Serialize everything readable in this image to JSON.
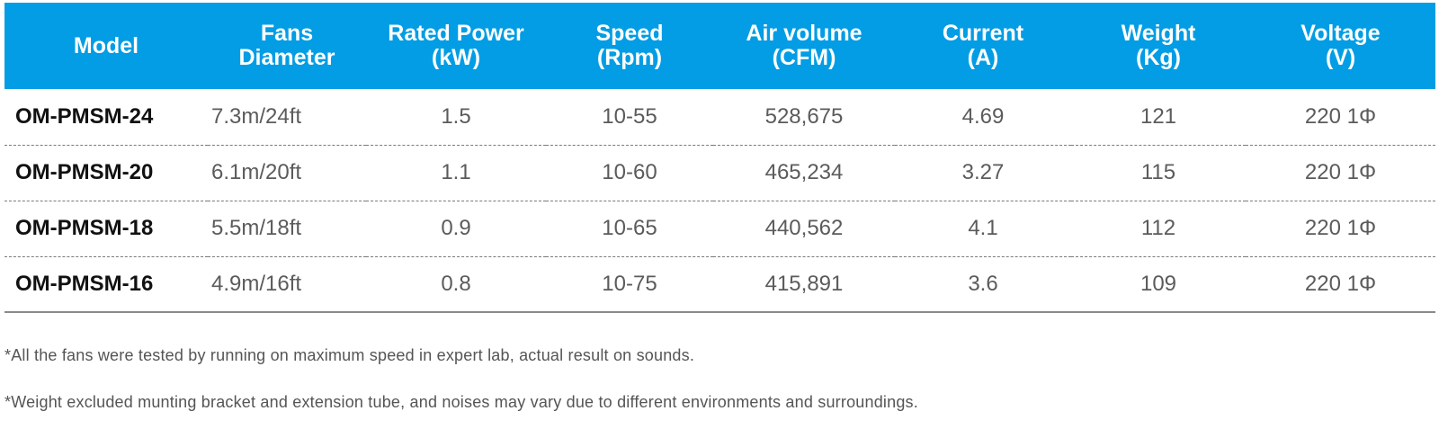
{
  "table": {
    "headers": [
      {
        "l1": "Model",
        "l2": ""
      },
      {
        "l1": "Fans",
        "l2": "Diameter"
      },
      {
        "l1": "Rated Power",
        "l2": "(kW)"
      },
      {
        "l1": "Speed",
        "l2": "(Rpm)"
      },
      {
        "l1": "Air volume",
        "l2": "(CFM)"
      },
      {
        "l1": "Current",
        "l2": "(A)"
      },
      {
        "l1": "Weight",
        "l2": "(Kg)"
      },
      {
        "l1": "Voltage",
        "l2": "(V)"
      }
    ],
    "rows": [
      [
        "OM-PMSM-24",
        "7.3m/24ft",
        "1.5",
        "10-55",
        "528,675",
        "4.69",
        "121",
        "220 1Φ"
      ],
      [
        "OM-PMSM-20",
        "6.1m/20ft",
        "1.1",
        "10-60",
        "465,234",
        "3.27",
        "115",
        "220 1Φ"
      ],
      [
        "OM-PMSM-18",
        "5.5m/18ft",
        "0.9",
        "10-65",
        "440,562",
        "4.1",
        "112",
        "220 1Φ"
      ],
      [
        "OM-PMSM-16",
        "4.9m/16ft",
        "0.8",
        "10-75",
        "415,891",
        "3.6",
        "109",
        "220 1Φ"
      ]
    ],
    "header_color": "#029de4"
  },
  "notes": [
    "*All the fans were tested by running on maximum speed in expert lab, actual result on sounds.",
    "*Weight excluded munting bracket and extension tube, and noises may vary due to different environments and surroundings."
  ]
}
